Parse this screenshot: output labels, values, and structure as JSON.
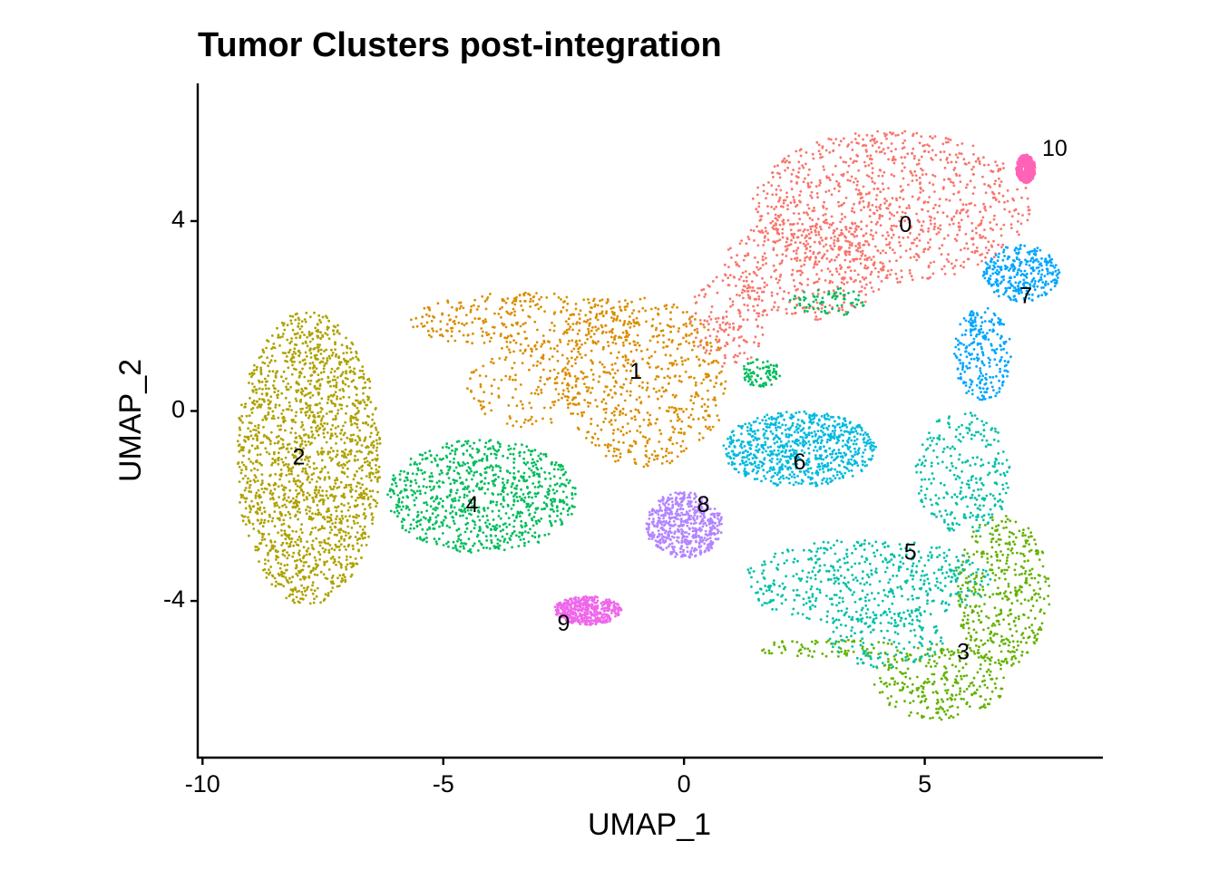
{
  "chart_data": {
    "type": "scatter",
    "title": "Tumor Clusters post-integration",
    "xlabel": "UMAP_1",
    "ylabel": "UMAP_2",
    "xlim": [
      -10.1,
      8.7
    ],
    "ylim": [
      -7.3,
      6.9
    ],
    "x_ticks": [
      -10,
      -5,
      0,
      5
    ],
    "y_ticks": [
      -4,
      0,
      4
    ],
    "grid": false,
    "legend": "none",
    "clusters": [
      {
        "label": "0",
        "color": "#F8766D",
        "label_pos": [
          4.6,
          3.9
        ],
        "regions": [
          {
            "cx": 4.3,
            "cy": 4.3,
            "rx": 2.9,
            "ry": 1.6,
            "weight": 0.65
          },
          {
            "cx": 2.5,
            "cy": 3.0,
            "rx": 1.7,
            "ry": 1.1,
            "weight": 0.25
          },
          {
            "cx": 0.9,
            "cy": 1.9,
            "rx": 0.8,
            "ry": 1.0,
            "weight": 0.1
          }
        ]
      },
      {
        "label": "1",
        "color": "#DB8E00",
        "label_pos": [
          -1.0,
          0.8
        ],
        "regions": [
          {
            "cx": -0.8,
            "cy": 0.6,
            "rx": 1.7,
            "ry": 1.8,
            "weight": 0.55
          },
          {
            "cx": -3.2,
            "cy": 1.9,
            "rx": 2.5,
            "ry": 0.6,
            "weight": 0.3
          },
          {
            "cx": -3.2,
            "cy": 0.5,
            "rx": 1.3,
            "ry": 0.9,
            "weight": 0.15
          }
        ]
      },
      {
        "label": "2",
        "color": "#AEA200",
        "label_pos": [
          -8.0,
          -1.0
        ],
        "regions": [
          {
            "cx": -7.8,
            "cy": -1.0,
            "rx": 1.5,
            "ry": 3.1,
            "weight": 1.0
          }
        ]
      },
      {
        "label": "3",
        "color": "#64B200",
        "label_pos": [
          5.8,
          -5.1
        ],
        "regions": [
          {
            "cx": 6.6,
            "cy": -3.8,
            "rx": 1.0,
            "ry": 1.6,
            "weight": 0.55
          },
          {
            "cx": 5.3,
            "cy": -5.7,
            "rx": 1.4,
            "ry": 0.8,
            "weight": 0.35
          },
          {
            "cx": 3.0,
            "cy": -5.0,
            "rx": 1.5,
            "ry": 0.2,
            "weight": 0.1
          }
        ]
      },
      {
        "label": "4",
        "color": "#00BD5C",
        "label_pos": [
          -4.4,
          -2.0
        ],
        "regions": [
          {
            "cx": -4.2,
            "cy": -1.8,
            "rx": 2.0,
            "ry": 1.2,
            "weight": 0.85
          },
          {
            "cx": 1.6,
            "cy": 0.8,
            "rx": 0.4,
            "ry": 0.3,
            "weight": 0.08
          },
          {
            "cx": 3.0,
            "cy": 2.3,
            "rx": 0.8,
            "ry": 0.3,
            "weight": 0.07
          }
        ]
      },
      {
        "label": "5",
        "color": "#00C1A7",
        "label_pos": [
          4.7,
          -3.0
        ],
        "regions": [
          {
            "cx": 3.8,
            "cy": -3.6,
            "rx": 2.6,
            "ry": 0.9,
            "weight": 0.55
          },
          {
            "cx": 5.8,
            "cy": -1.3,
            "rx": 1.0,
            "ry": 1.3,
            "weight": 0.3
          },
          {
            "cx": 4.2,
            "cy": -4.8,
            "rx": 1.2,
            "ry": 0.6,
            "weight": 0.15
          }
        ]
      },
      {
        "label": "6",
        "color": "#00BADE",
        "label_pos": [
          2.4,
          -1.1
        ],
        "regions": [
          {
            "cx": 2.4,
            "cy": -0.8,
            "rx": 1.6,
            "ry": 0.8,
            "weight": 1.0
          }
        ]
      },
      {
        "label": "7",
        "color": "#00A6FF",
        "label_pos": [
          7.1,
          2.4
        ],
        "regions": [
          {
            "cx": 7.0,
            "cy": 2.9,
            "rx": 0.8,
            "ry": 0.6,
            "weight": 0.55
          },
          {
            "cx": 6.2,
            "cy": 1.2,
            "rx": 0.6,
            "ry": 1.0,
            "weight": 0.45
          }
        ]
      },
      {
        "label": "8",
        "color": "#B385FF",
        "label_pos": [
          0.4,
          -2.0
        ],
        "regions": [
          {
            "cx": 0.0,
            "cy": -2.4,
            "rx": 0.8,
            "ry": 0.7,
            "weight": 1.0
          }
        ]
      },
      {
        "label": "9",
        "color": "#EF67EB",
        "label_pos": [
          -2.5,
          -4.5
        ],
        "regions": [
          {
            "cx": -2.0,
            "cy": -4.2,
            "rx": 0.7,
            "ry": 0.3,
            "weight": 1.0
          }
        ]
      },
      {
        "label": "10",
        "color": "#FF63B6",
        "label_pos": [
          7.7,
          5.5
        ],
        "regions": [
          {
            "cx": 7.1,
            "cy": 5.1,
            "rx": 0.2,
            "ry": 0.3,
            "weight": 1.0
          }
        ]
      }
    ]
  }
}
